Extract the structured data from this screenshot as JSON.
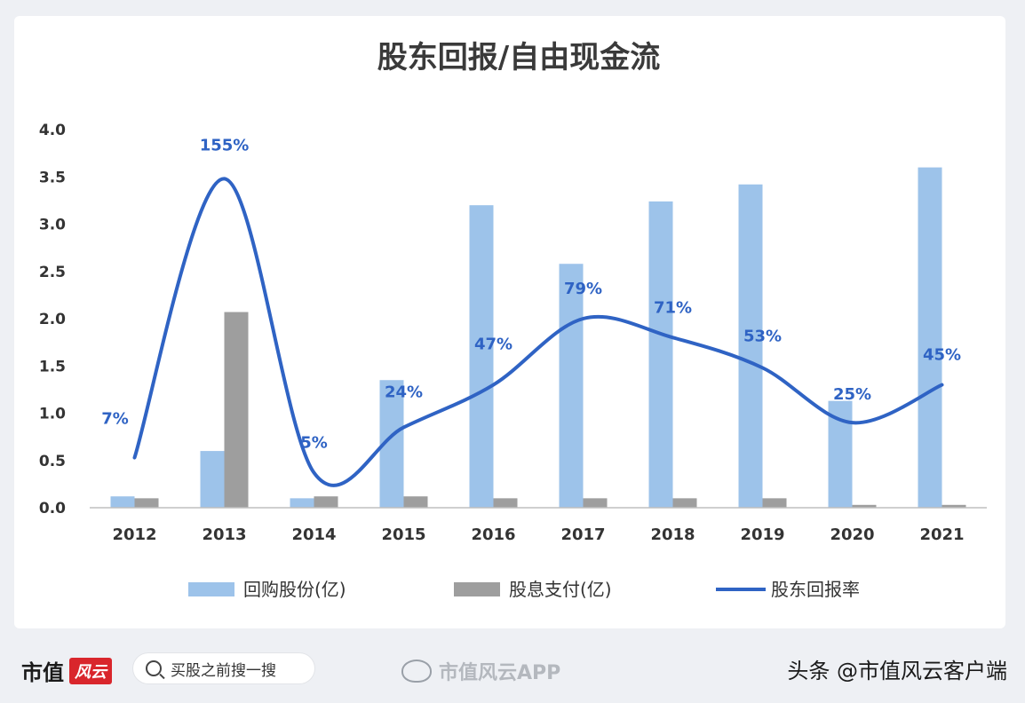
{
  "chart_data": {
    "type": "bar",
    "title": "股东回报/自由现金流",
    "categories": [
      "2012",
      "2013",
      "2014",
      "2015",
      "2016",
      "2017",
      "2018",
      "2019",
      "2020",
      "2021"
    ],
    "ylim": [
      0,
      4.0
    ],
    "yticks": [
      "0.0",
      "0.5",
      "1.0",
      "1.5",
      "2.0",
      "2.5",
      "3.0",
      "3.5",
      "4.0"
    ],
    "grid": false,
    "legend_position": "bottom",
    "series": [
      {
        "name": "回购股份(亿)",
        "kind": "bar",
        "color": "#9dc3ea",
        "values": [
          0.12,
          0.6,
          0.1,
          1.35,
          3.2,
          2.58,
          3.24,
          3.42,
          1.13,
          3.6
        ]
      },
      {
        "name": "股息支付(亿)",
        "kind": "bar",
        "color": "#9e9e9e",
        "values": [
          0.1,
          2.07,
          0.12,
          0.12,
          0.1,
          0.1,
          0.1,
          0.1,
          0.03,
          0.03
        ]
      },
      {
        "name": "股东回报率",
        "kind": "line",
        "color": "#2f63c4",
        "values": [
          0.53,
          3.48,
          0.37,
          0.85,
          1.3,
          2.0,
          1.8,
          1.48,
          0.9,
          1.3
        ],
        "labels": [
          "7%",
          "155%",
          "5%",
          "24%",
          "47%",
          "79%",
          "71%",
          "53%",
          "25%",
          "45%"
        ]
      }
    ]
  },
  "footer": {
    "brand": "市值",
    "brand_logo": "风云",
    "search_text": "买股之前搜一搜",
    "search_icon": "search-icon",
    "weibo_icon": "weibo-icon",
    "weibo_text": "市值风云APP",
    "toutiao_text": "头条 @市值风云客户端"
  }
}
